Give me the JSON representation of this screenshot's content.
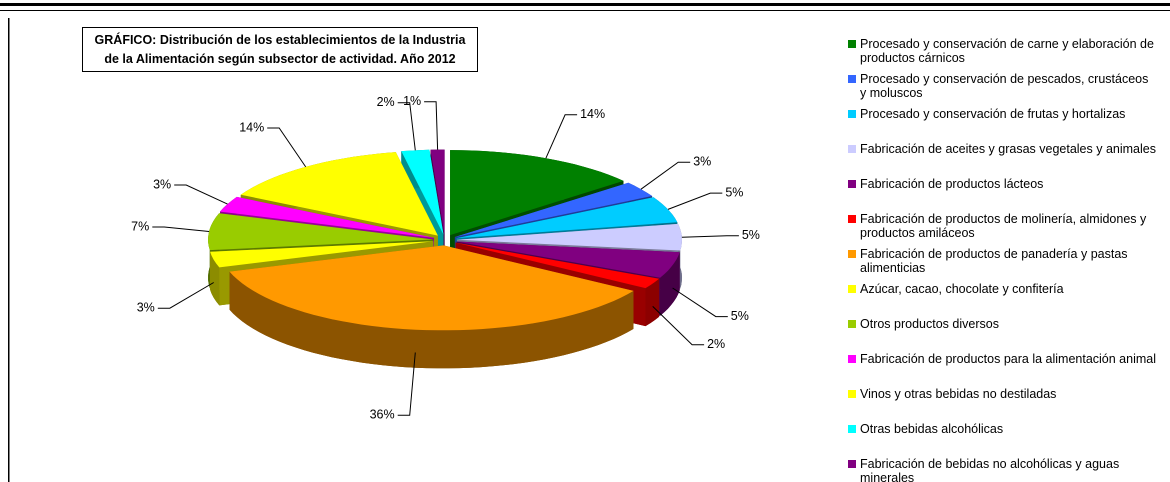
{
  "chart_data": {
    "type": "pie",
    "title": "GRÁFICO: Distribución de los establecimientos de la Industria de la Alimentación según subsector de actividad. Año 2012",
    "categories": [
      "Procesado y conservación de carne y elaboración de productos cárnicos",
      "Procesado y conservación de pescados, crustáceos y moluscos",
      "Procesado y conservación de frutas y hortalizas",
      "Fabricación de aceites y grasas vegetales y animales",
      "Fabricación de productos lácteos",
      "Fabricación de productos de molinería, almidones y productos amiláceos",
      "Fabricación de productos de panadería y pastas alimenticias",
      "Azúcar, cacao, chocolate y confitería",
      "Otros productos diversos",
      "Fabricación de productos para la alimentación animal",
      "Vinos y otras bebidas no destiladas",
      "Otras bebidas alcohólicas",
      "Fabricación de bebidas no alcohólicas y aguas minerales"
    ],
    "values": [
      14,
      3,
      5,
      5,
      5,
      2,
      36,
      3,
      7,
      3,
      14,
      2,
      1
    ],
    "value_labels": [
      "14%",
      "3%",
      "5%",
      "5%",
      "5%",
      "2%",
      "36%",
      "3%",
      "7%",
      "3%",
      "14%",
      "2%",
      "1%"
    ],
    "colors": [
      "#008000",
      "#3366ff",
      "#00ccff",
      "#ccccff",
      "#800080",
      "#ff0000",
      "#ff9900",
      "#ffff00",
      "#99cc00",
      "#ff00ff",
      "#ffff00",
      "#00ffff",
      "#800080"
    ],
    "legend": "right"
  }
}
